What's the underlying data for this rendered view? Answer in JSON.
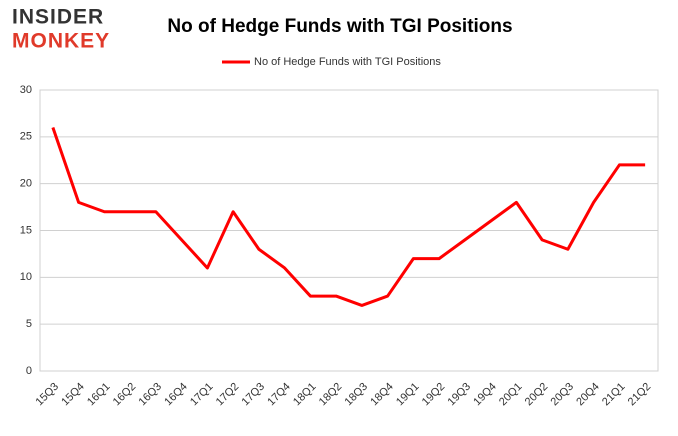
{
  "logo": {
    "line1": "INSIDER",
    "line2": "MONKEY"
  },
  "chart_data": {
    "type": "line",
    "title": "No of Hedge Funds with TGI Positions",
    "categories": [
      "15Q3",
      "15Q4",
      "16Q1",
      "16Q2",
      "16Q3",
      "16Q4",
      "17Q1",
      "17Q2",
      "17Q3",
      "17Q4",
      "18Q1",
      "18Q2",
      "18Q3",
      "18Q4",
      "19Q1",
      "19Q2",
      "19Q3",
      "19Q4",
      "20Q1",
      "20Q2",
      "20Q3",
      "20Q4",
      "21Q1",
      "21Q2"
    ],
    "series": [
      {
        "name": "No of Hedge Funds with TGI Positions",
        "color": "#ff0000",
        "values": [
          26,
          18,
          17,
          17,
          17,
          14,
          11,
          17,
          13,
          11,
          8,
          8,
          7,
          8,
          12,
          12,
          14,
          16,
          18,
          14,
          13,
          18,
          22,
          22
        ]
      }
    ],
    "ylim": [
      0,
      30
    ],
    "yticks": [
      0,
      5,
      10,
      15,
      20,
      25,
      30
    ],
    "grid": true,
    "legend": "top"
  }
}
